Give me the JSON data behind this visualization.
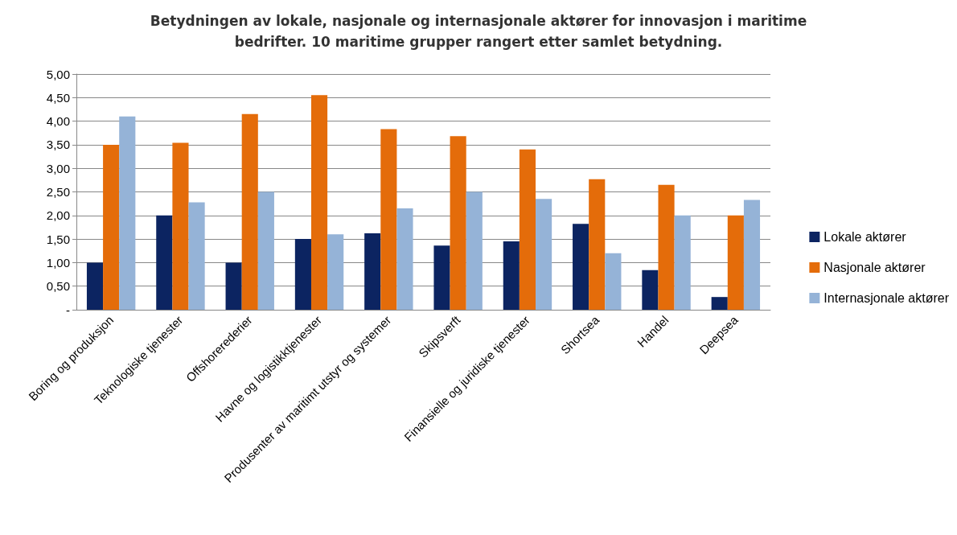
{
  "chart_data": {
    "type": "bar",
    "title": "Betydningen av lokale, nasjonale og internasjonale aktører for innovasjon i maritime\nbedrifter. 10 maritime grupper rangert etter samlet betydning.",
    "categories": [
      "Boring og produksjon",
      "Teknologiske tjenester",
      "Offshorerederier",
      "Havne og logistikktjenester",
      "Produsenter av maritimt utstyr og systemer",
      "Skipsverft",
      "Finansielle og juridiske tjenester",
      "Shortsea",
      "Handel",
      "Deepsea"
    ],
    "series": [
      {
        "name": "Lokale aktører",
        "color": "#0c2461",
        "values": [
          1.0,
          2.0,
          1.0,
          1.5,
          1.62,
          1.36,
          1.45,
          1.82,
          0.84,
          0.27
        ]
      },
      {
        "name": "Nasjonale aktører",
        "color": "#e46c0a",
        "values": [
          3.5,
          3.54,
          4.15,
          4.55,
          3.83,
          3.68,
          3.4,
          2.77,
          2.65,
          2.0
        ]
      },
      {
        "name": "Internasjonale aktører",
        "color": "#95b3d7",
        "values": [
          4.1,
          2.28,
          2.5,
          1.6,
          2.15,
          2.5,
          2.35,
          1.2,
          2.0,
          2.33
        ]
      }
    ],
    "ylim": [
      0,
      5
    ],
    "yticks": [
      {
        "value": 0,
        "label": "-"
      },
      {
        "value": 0.5,
        "label": "0,50"
      },
      {
        "value": 1,
        "label": "1,00"
      },
      {
        "value": 1.5,
        "label": "1,50"
      },
      {
        "value": 2,
        "label": "2,00"
      },
      {
        "value": 2.5,
        "label": "2,50"
      },
      {
        "value": 3,
        "label": "3,00"
      },
      {
        "value": 3.5,
        "label": "3,50"
      },
      {
        "value": 4,
        "label": "4,00"
      },
      {
        "value": 4.5,
        "label": "4,50"
      },
      {
        "value": 5,
        "label": "5,00"
      }
    ],
    "grid": "y",
    "legend": "right"
  }
}
